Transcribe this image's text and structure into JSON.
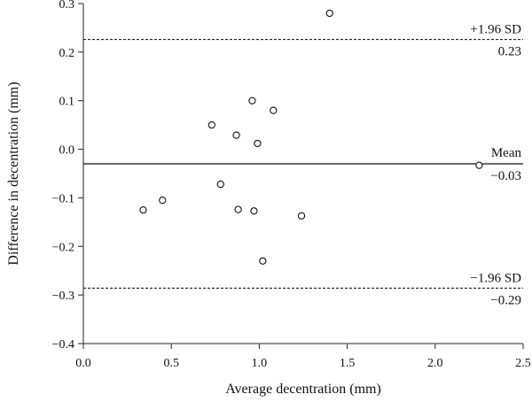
{
  "chart_data": {
    "type": "scatter",
    "title": "",
    "xlabel": "Average decentration (mm)",
    "ylabel": "Difference in decentration (mm)",
    "xlim": [
      0.0,
      2.5
    ],
    "ylim": [
      -0.4,
      0.3
    ],
    "xticks": [
      "0.0",
      "0.5",
      "1.0",
      "1.5",
      "2.0",
      "2.5"
    ],
    "xtick_values": [
      0.0,
      0.5,
      1.0,
      1.5,
      2.0,
      2.5
    ],
    "yticks": [
      "0.3",
      "0.2",
      "0.1",
      "0.0",
      "−0.1",
      "−0.2",
      "−0.3",
      "−0.4"
    ],
    "ytick_values": [
      0.3,
      0.2,
      0.1,
      0.0,
      -0.1,
      -0.2,
      -0.3,
      -0.4
    ],
    "grid": false,
    "points": [
      {
        "x": 0.34,
        "y": -0.125
      },
      {
        "x": 0.45,
        "y": -0.105
      },
      {
        "x": 0.73,
        "y": 0.05
      },
      {
        "x": 0.78,
        "y": -0.072
      },
      {
        "x": 0.87,
        "y": 0.029
      },
      {
        "x": 0.88,
        "y": -0.124
      },
      {
        "x": 0.96,
        "y": 0.1
      },
      {
        "x": 0.97,
        "y": -0.127
      },
      {
        "x": 0.99,
        "y": 0.012
      },
      {
        "x": 1.02,
        "y": -0.23
      },
      {
        "x": 1.08,
        "y": 0.08
      },
      {
        "x": 1.24,
        "y": -0.137
      },
      {
        "x": 1.4,
        "y": 0.28
      },
      {
        "x": 2.25,
        "y": -0.033
      }
    ],
    "reference_lines": {
      "mean": {
        "value": -0.03,
        "name": "Mean",
        "label": "−0.03"
      },
      "upper": {
        "value": 0.226,
        "name": "+1.96 SD",
        "label": "0.23"
      },
      "lower": {
        "value": -0.286,
        "name": "−1.96 SD",
        "label": "−0.29"
      }
    }
  }
}
